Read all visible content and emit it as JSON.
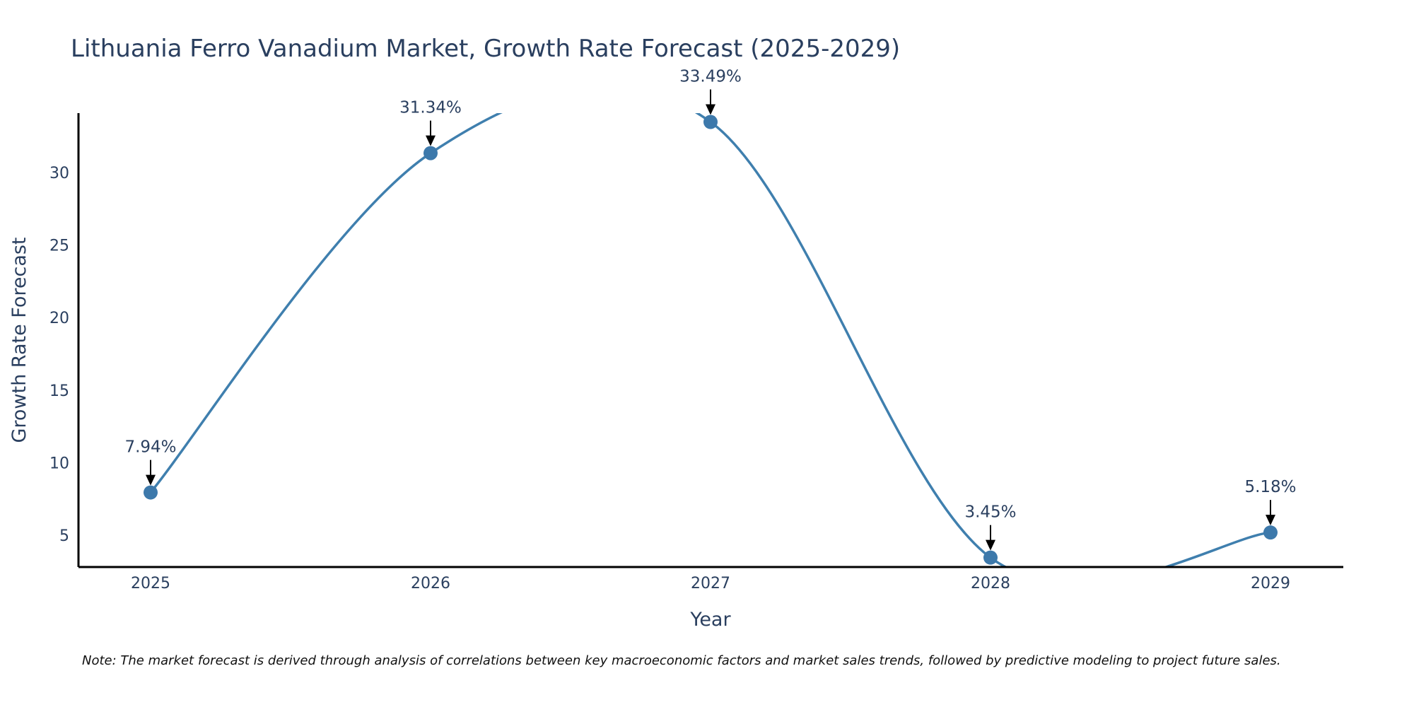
{
  "chart_data": {
    "type": "line",
    "title": "Lithuania Ferro Vanadium Market, Growth Rate Forecast (2025-2029)",
    "xlabel": "Year",
    "ylabel": "Growth Rate Forecast",
    "categories": [
      "2025",
      "2026",
      "2027",
      "2028",
      "2029"
    ],
    "series": [
      {
        "name": "Growth Rate Forecast",
        "values": [
          7.94,
          31.34,
          33.49,
          3.45,
          5.18
        ],
        "labels": [
          "7.94%",
          "31.34%",
          "33.49%",
          "3.45%",
          "5.18%"
        ]
      }
    ],
    "ylim": [
      2.8,
      34.1
    ],
    "yticks": [
      {
        "value": 5,
        "label": "5"
      },
      {
        "value": 10,
        "label": "10"
      },
      {
        "value": 15,
        "label": "15"
      },
      {
        "value": 20,
        "label": "20"
      },
      {
        "value": 25,
        "label": "25"
      },
      {
        "value": 30,
        "label": "30"
      }
    ],
    "line_color": "#3f7fae",
    "marker_color": "#3d79ab",
    "axis_color": "#000000",
    "grid": false,
    "note": "Note: The market forecast is derived through analysis of correlations between key macroeconomic factors and market sales trends, followed by predictive modeling to project future sales."
  }
}
